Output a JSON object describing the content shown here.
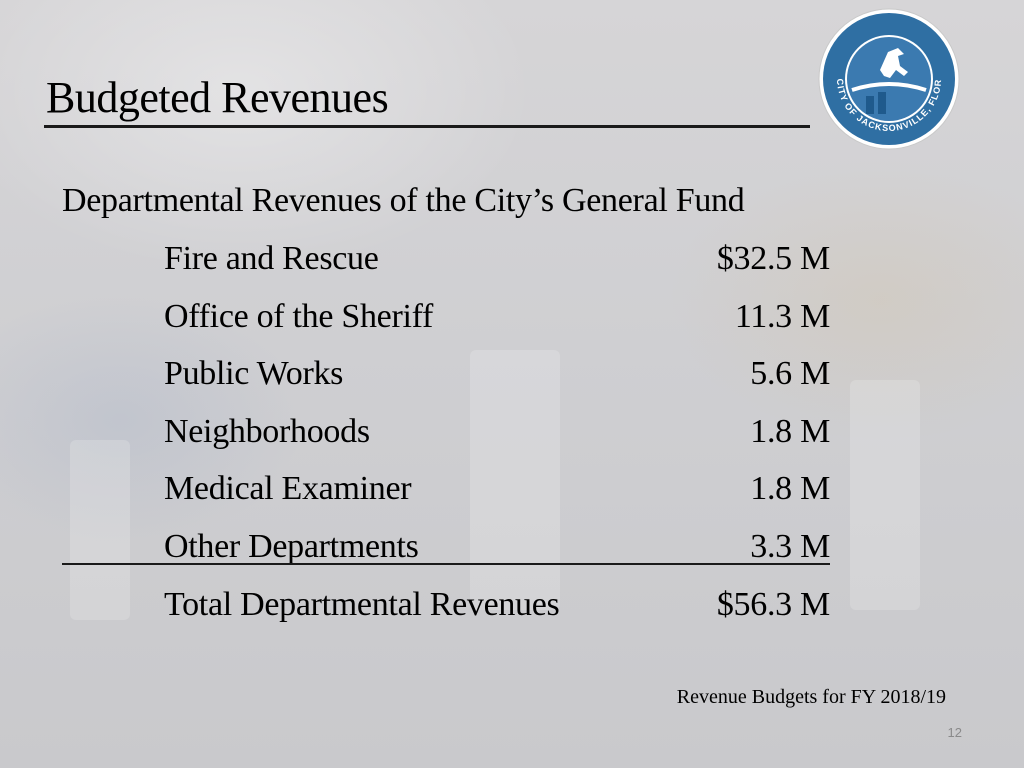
{
  "slide": {
    "title": "Budgeted Revenues",
    "subtitle": "Departmental Revenues of the City’s General Fund",
    "rows": [
      {
        "label": "Fire and Rescue",
        "value": "$32.5 M"
      },
      {
        "label": "Office of the Sheriff",
        "value": "11.3 M"
      },
      {
        "label": "Public Works",
        "value": "5.6 M"
      },
      {
        "label": "Neighborhoods",
        "value": "1.8 M"
      },
      {
        "label": "Medical Examiner",
        "value": "1.8 M"
      },
      {
        "label": "Other Departments",
        "value": "3.3 M"
      }
    ],
    "total": {
      "label": "Total Departmental Revenues",
      "value": "$56.3 M"
    },
    "footnote": "Revenue Budgets for FY 2018/19",
    "page_number": "12"
  },
  "seal": {
    "text": "CITY OF JACKSONVILLE, FLORIDA",
    "icon": "city-seal-horse-icon",
    "colors": {
      "ring": "#ffffff",
      "outer": "#2f6fa3",
      "inner": "#ffffff",
      "accent": "#1f5a8c"
    }
  },
  "colors": {
    "text": "#000000",
    "rule": "#1a1a1a",
    "page_number": "#8a8a8a"
  }
}
